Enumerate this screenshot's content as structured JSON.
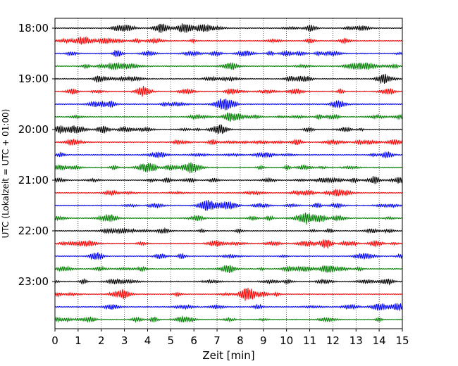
{
  "chart_data": {
    "type": "line",
    "xlabel": "Zeit  [min]",
    "ylabel": "UTC (Lokalzeit = UTC + 01:00)",
    "xlim": [
      0,
      15
    ],
    "x_ticks": [
      0,
      1,
      2,
      3,
      4,
      5,
      6,
      7,
      8,
      9,
      10,
      11,
      12,
      13,
      14,
      15
    ],
    "x_tick_labels": [
      "0",
      "1",
      "2",
      "3",
      "4",
      "5",
      "6",
      "7",
      "8",
      "9",
      "10",
      "11",
      "12",
      "13",
      "14",
      "15"
    ],
    "y_tick_labels": [
      "18:00",
      "19:00",
      "20:00",
      "21:00",
      "22:00",
      "23:00"
    ],
    "grid": "vertical-dotted",
    "trace_interval_min": 15,
    "trace_colors": [
      "#000000",
      "#ff0000",
      "#0000ff",
      "#007f00"
    ],
    "trace_start_times": [
      "18:00",
      "18:15",
      "18:30",
      "18:45",
      "19:00",
      "19:15",
      "19:30",
      "19:45",
      "20:00",
      "20:15",
      "20:30",
      "20:45",
      "21:00",
      "21:15",
      "21:30",
      "21:45",
      "22:00",
      "22:15",
      "22:30",
      "22:45",
      "23:00",
      "23:15",
      "23:30",
      "23:45"
    ]
  }
}
